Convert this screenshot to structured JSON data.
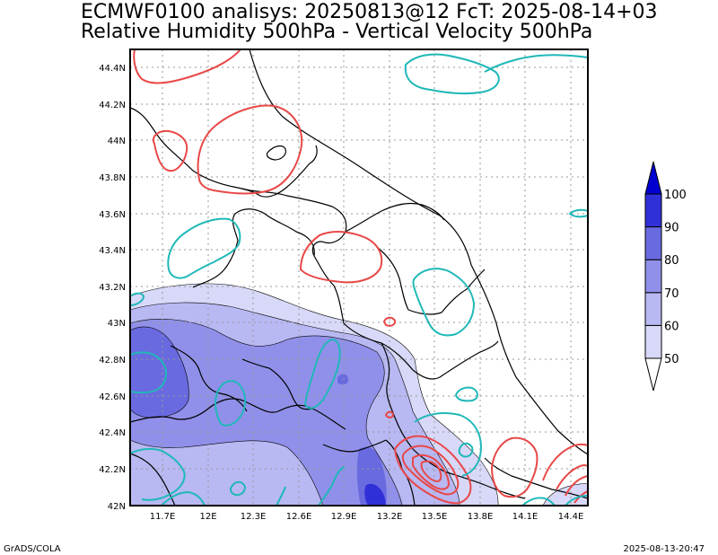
{
  "title": {
    "line1": "ECMWF0100 analisys: 20250813@12 FcT: 2025-08-14+03",
    "line2": "Relative Humidity 500hPa - Vertical Velocity 500hPa"
  },
  "axes": {
    "lon_labels": [
      "11.7E",
      "12E",
      "12.3E",
      "12.6E",
      "12.9E",
      "13.2E",
      "13.5E",
      "13.8E",
      "14.1E",
      "14.4E"
    ],
    "lat_labels": [
      "44.4N",
      "44.2N",
      "44N",
      "43.8N",
      "43.6N",
      "43.4N",
      "43.2N",
      "43N",
      "42.8N",
      "42.6N",
      "42.4N",
      "42.2N",
      "42N"
    ]
  },
  "colorbar": {
    "levels": [
      "50",
      "60",
      "70",
      "80",
      "90",
      "100"
    ],
    "colors": [
      "#ffffff",
      "#d8d8f8",
      "#b8b8f2",
      "#9090ea",
      "#6a6ae0",
      "#3030d8",
      "#0000d0"
    ]
  },
  "contour_colors": {
    "rising_motion": "#e84848",
    "sinking_motion": "#20b8b8",
    "coastline": "#000000",
    "grid": "#999999"
  },
  "footer": {
    "left": "GrADS/COLA",
    "right": "2025-08-13-20:47"
  }
}
